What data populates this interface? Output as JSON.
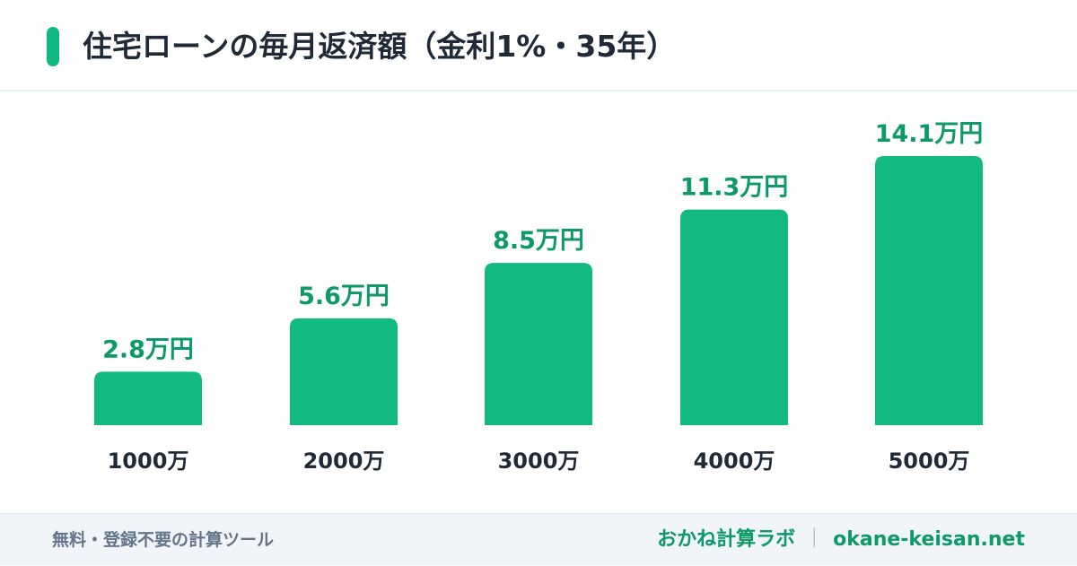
{
  "title": "住宅ローンの毎月返済額（金利1%・35年）",
  "colors": {
    "accent": "#10b981",
    "bar": "#12b981",
    "value_label": "#0e9968",
    "axis_label": "#1f2937",
    "footer_text": "#64748b"
  },
  "chart_data": {
    "type": "bar",
    "title": "住宅ローンの毎月返済額（金利1%・35年）",
    "categories": [
      "1000万",
      "2000万",
      "3000万",
      "4000万",
      "5000万"
    ],
    "values": [
      2.8,
      5.6,
      8.5,
      11.3,
      14.1
    ],
    "value_labels": [
      "2.8万円",
      "5.6万円",
      "8.5万円",
      "11.3万円",
      "14.1万円"
    ],
    "unit": "万円",
    "xlabel": "",
    "ylabel": "",
    "ylim": [
      0,
      14.1
    ],
    "grid": false,
    "legend": "none"
  },
  "footer": {
    "left": "無料・登録不要の計算ツール",
    "brand": "おかね計算ラボ",
    "separator": "｜",
    "domain": "okane-keisan.net"
  }
}
